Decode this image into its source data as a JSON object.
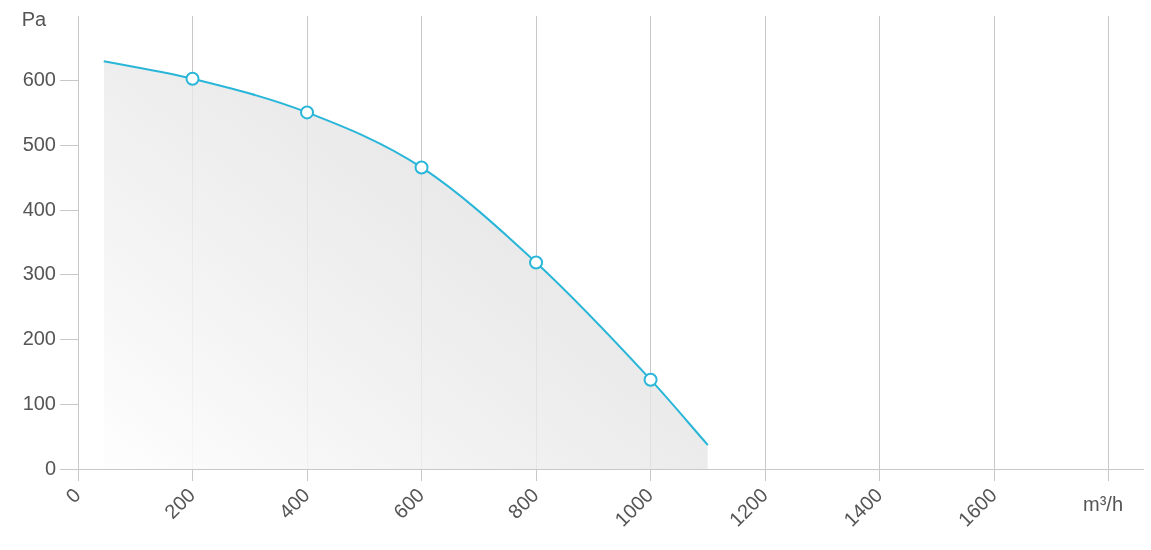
{
  "chart_data": {
    "type": "area",
    "xlabel": "m³/h",
    "ylabel": "Pa",
    "x": [
      45,
      200,
      400,
      600,
      800,
      1000,
      1100
    ],
    "series": [
      {
        "color": "#29b6d8",
        "values": [
          630,
          603,
          551,
          466,
          319,
          138,
          37
        ]
      }
    ],
    "xlim": [
      0,
      1860
    ],
    "xticks": [
      0,
      200,
      400,
      600,
      800,
      1000,
      1200,
      1400,
      1600,
      {
        "value": 1800,
        "label": null
      }
    ],
    "ylim": [
      0,
      700
    ],
    "yticks": [
      0,
      100,
      200,
      300,
      400,
      500,
      600
    ],
    "grid": "x",
    "legend": false,
    "marker": "circle"
  }
}
